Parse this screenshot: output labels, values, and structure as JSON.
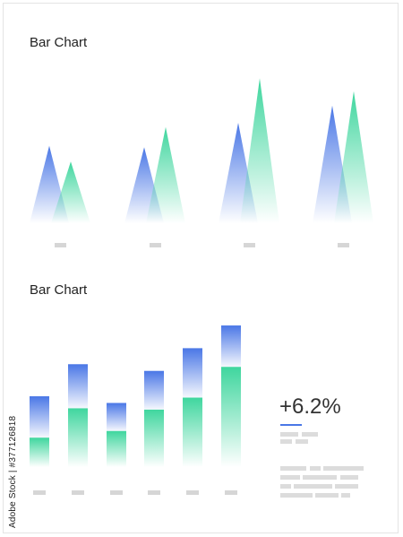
{
  "chart_data": [
    {
      "type": "bar",
      "title": "Bar Chart",
      "style": "triangle",
      "categories": [
        "",
        "",
        "",
        ""
      ],
      "series": [
        {
          "color": "#4a77e6",
          "values": [
            54,
            53,
            70,
            82
          ]
        },
        {
          "color": "#3fd69e",
          "values": [
            43,
            67,
            101,
            92
          ]
        }
      ],
      "ylim": [
        0,
        110
      ],
      "grid": false
    },
    {
      "type": "bar",
      "title": "Bar Chart",
      "style": "stacked",
      "categories": [
        "",
        "",
        "",
        "",
        "",
        ""
      ],
      "series": [
        {
          "color": "#3fd69e",
          "values": [
            22,
            44,
            27,
            43,
            52,
            75
          ]
        },
        {
          "color": "#4a77e6",
          "values": [
            31,
            33,
            21,
            29,
            37,
            31
          ]
        }
      ],
      "ylim": [
        0,
        110
      ],
      "grid": false
    }
  ],
  "kpi": {
    "value": "+6.2%",
    "accent": "#4a77e6"
  },
  "credit": "Adobe Stock | #377126818"
}
